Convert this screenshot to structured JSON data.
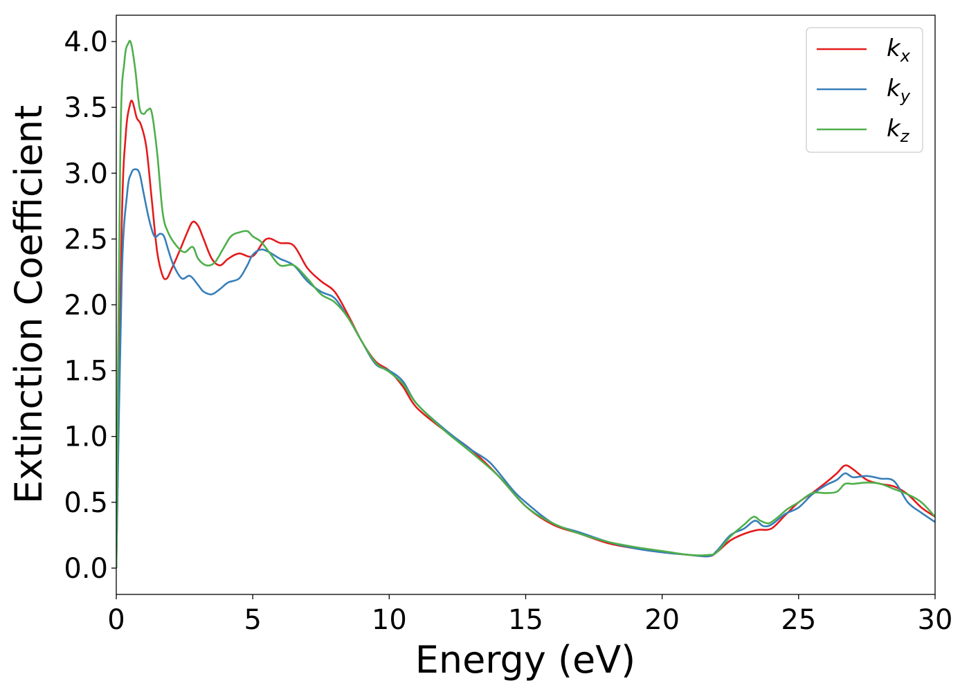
{
  "chart_data": {
    "type": "line",
    "xlabel": "Energy (eV)",
    "ylabel": "Extinction Coefficient",
    "xlim": [
      0,
      30
    ],
    "ylim": [
      -0.2,
      4.2
    ],
    "xticks": [
      "0",
      "5",
      "10",
      "15",
      "20",
      "25",
      "30"
    ],
    "yticks": [
      "0.0",
      "0.5",
      "1.0",
      "1.5",
      "2.0",
      "2.5",
      "3.0",
      "3.5",
      "4.0"
    ],
    "legend_position": "top-right",
    "grid": false,
    "series": [
      {
        "name": "k",
        "subscript": "x",
        "color": "#e41a1c",
        "x": [
          0,
          0.2,
          0.35,
          0.5,
          0.6,
          0.75,
          0.9,
          1.1,
          1.3,
          1.5,
          1.7,
          1.85,
          2.0,
          2.3,
          2.6,
          2.8,
          3.0,
          3.2,
          3.5,
          3.8,
          4.1,
          4.5,
          5.0,
          5.5,
          6.0,
          6.5,
          7.0,
          7.5,
          8.0,
          8.5,
          9.0,
          9.5,
          10.0,
          10.5,
          11.0,
          12.0,
          13.0,
          14.0,
          15.0,
          16.0,
          17.0,
          18.0,
          19.0,
          20.0,
          21.0,
          21.7,
          22.0,
          22.5,
          23.0,
          23.5,
          24.0,
          24.5,
          25.0,
          25.5,
          26.0,
          26.4,
          26.7,
          27.0,
          27.5,
          28.0,
          28.5,
          29.0,
          29.5,
          30.0
        ],
        "y": [
          0.0,
          2.6,
          3.3,
          3.52,
          3.54,
          3.42,
          3.37,
          3.2,
          2.8,
          2.4,
          2.22,
          2.2,
          2.26,
          2.4,
          2.55,
          2.63,
          2.6,
          2.5,
          2.35,
          2.3,
          2.35,
          2.39,
          2.37,
          2.5,
          2.47,
          2.45,
          2.28,
          2.18,
          2.1,
          1.92,
          1.72,
          1.57,
          1.5,
          1.38,
          1.22,
          1.05,
          0.9,
          0.7,
          0.47,
          0.33,
          0.26,
          0.19,
          0.15,
          0.12,
          0.1,
          0.09,
          0.12,
          0.21,
          0.26,
          0.29,
          0.3,
          0.4,
          0.5,
          0.57,
          0.65,
          0.72,
          0.78,
          0.75,
          0.67,
          0.64,
          0.62,
          0.56,
          0.46,
          0.39
        ]
      },
      {
        "name": "k",
        "subscript": "y",
        "color": "#377eb8",
        "x": [
          0,
          0.2,
          0.4,
          0.55,
          0.7,
          0.85,
          1.0,
          1.2,
          1.4,
          1.6,
          1.75,
          1.9,
          2.1,
          2.4,
          2.7,
          3.0,
          3.2,
          3.5,
          3.8,
          4.1,
          4.5,
          4.8,
          5.0,
          5.3,
          5.6,
          6.0,
          6.5,
          7.0,
          7.5,
          8.0,
          8.5,
          9.0,
          9.5,
          10.0,
          10.5,
          11.0,
          12.0,
          13.0,
          13.7,
          14.5,
          15.0,
          16.0,
          17.0,
          18.0,
          19.0,
          20.0,
          21.0,
          21.7,
          22.0,
          22.5,
          23.0,
          23.4,
          23.7,
          24.0,
          24.5,
          25.0,
          25.5,
          26.0,
          26.4,
          26.7,
          27.0,
          27.5,
          28.0,
          28.5,
          29.0,
          29.5,
          30.0
        ],
        "y": [
          0.0,
          2.2,
          2.85,
          3.0,
          3.03,
          3.0,
          2.85,
          2.65,
          2.52,
          2.54,
          2.52,
          2.42,
          2.3,
          2.2,
          2.22,
          2.15,
          2.1,
          2.08,
          2.12,
          2.17,
          2.2,
          2.3,
          2.38,
          2.42,
          2.4,
          2.35,
          2.3,
          2.18,
          2.1,
          2.05,
          1.9,
          1.72,
          1.55,
          1.5,
          1.42,
          1.25,
          1.06,
          0.9,
          0.8,
          0.6,
          0.5,
          0.34,
          0.27,
          0.2,
          0.15,
          0.12,
          0.1,
          0.09,
          0.13,
          0.25,
          0.3,
          0.36,
          0.32,
          0.33,
          0.41,
          0.46,
          0.56,
          0.63,
          0.67,
          0.72,
          0.69,
          0.7,
          0.68,
          0.66,
          0.5,
          0.42,
          0.35
        ]
      },
      {
        "name": "k",
        "subscript": "z",
        "color": "#4daf4a",
        "x": [
          0,
          0.15,
          0.3,
          0.45,
          0.55,
          0.7,
          0.85,
          1.0,
          1.15,
          1.3,
          1.5,
          1.7,
          1.9,
          2.2,
          2.5,
          2.8,
          3.0,
          3.3,
          3.6,
          3.9,
          4.2,
          4.5,
          4.8,
          5.0,
          5.3,
          5.6,
          6.0,
          6.5,
          7.0,
          7.5,
          8.0,
          8.5,
          9.0,
          9.5,
          10.0,
          10.5,
          11.0,
          12.0,
          13.0,
          14.0,
          15.0,
          16.0,
          17.0,
          18.0,
          19.0,
          20.0,
          21.0,
          21.7,
          22.0,
          22.5,
          23.0,
          23.35,
          23.6,
          23.9,
          24.2,
          24.6,
          25.0,
          25.5,
          26.0,
          26.4,
          26.7,
          27.0,
          27.5,
          28.0,
          28.5,
          29.0,
          29.5,
          30.0
        ],
        "y": [
          0.0,
          3.2,
          3.85,
          3.99,
          3.98,
          3.78,
          3.5,
          3.45,
          3.48,
          3.46,
          3.15,
          2.7,
          2.55,
          2.45,
          2.4,
          2.44,
          2.35,
          2.3,
          2.32,
          2.42,
          2.52,
          2.55,
          2.56,
          2.52,
          2.48,
          2.4,
          2.3,
          2.3,
          2.2,
          2.08,
          2.02,
          1.9,
          1.72,
          1.56,
          1.49,
          1.4,
          1.25,
          1.05,
          0.88,
          0.7,
          0.47,
          0.34,
          0.26,
          0.2,
          0.16,
          0.13,
          0.1,
          0.1,
          0.12,
          0.24,
          0.33,
          0.39,
          0.36,
          0.34,
          0.38,
          0.45,
          0.5,
          0.57,
          0.57,
          0.58,
          0.64,
          0.64,
          0.65,
          0.64,
          0.6,
          0.56,
          0.5,
          0.39
        ]
      }
    ]
  }
}
